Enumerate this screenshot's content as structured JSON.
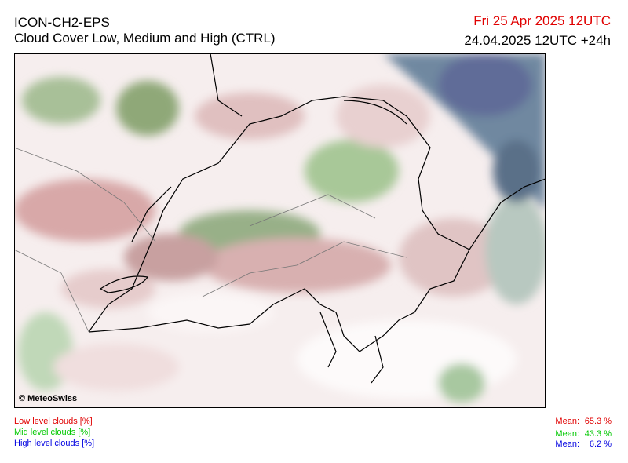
{
  "header": {
    "model": "ICON-CH2-EPS",
    "title": "Cloud Cover Low, Medium and High (CTRL)",
    "valid_time": "Fri 25 Apr 2025 12UTC",
    "run_time": "24.04.2025 12UTC +24h"
  },
  "map": {
    "credit": "© MeteoSwiss"
  },
  "legend": [
    {
      "label": "Low level clouds [%]",
      "mean_label": "Mean:",
      "mean": "65.3 %"
    },
    {
      "label": "Mid level clouds [%]",
      "mean_label": "Mean:",
      "mean": "43.3 %"
    },
    {
      "label": "High level clouds [%]",
      "mean_label": "Mean:",
      "mean": "6.2 %"
    }
  ]
}
